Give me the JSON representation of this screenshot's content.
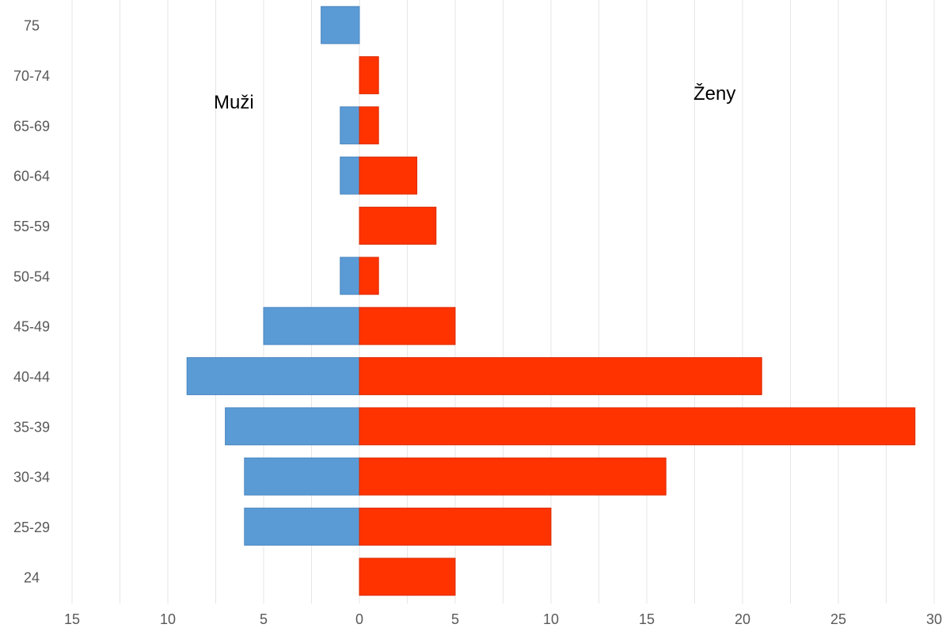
{
  "chart_data": {
    "type": "bar",
    "orientation": "horizontal",
    "layout": "population-pyramid",
    "categories": [
      "24",
      "25-29",
      "30-34",
      "35-39",
      "40-44",
      "45-49",
      "50-54",
      "55-59",
      "60-64",
      "65-69",
      "70-74",
      "75"
    ],
    "series": [
      {
        "name": "Muži",
        "values": [
          0,
          6,
          6,
          7,
          9,
          5,
          1,
          0,
          1,
          1,
          0,
          2
        ],
        "direction": "left",
        "color": "#5B9BD5"
      },
      {
        "name": "Ženy",
        "values": [
          5,
          10,
          16,
          29,
          21,
          5,
          1,
          4,
          3,
          1,
          1,
          0
        ],
        "direction": "right",
        "color": "#FF3300"
      }
    ],
    "x_ticks": [
      "15",
      "10",
      "5",
      "0",
      "5",
      "10",
      "15",
      "20",
      "25",
      "30"
    ],
    "xlim": [
      -15,
      30
    ],
    "grid": "vertical",
    "annotations": [
      {
        "text": "Muži",
        "near": "upper-left"
      },
      {
        "text": "Ženy",
        "near": "upper-right"
      }
    ],
    "title": "",
    "xlabel": "",
    "ylabel": ""
  }
}
